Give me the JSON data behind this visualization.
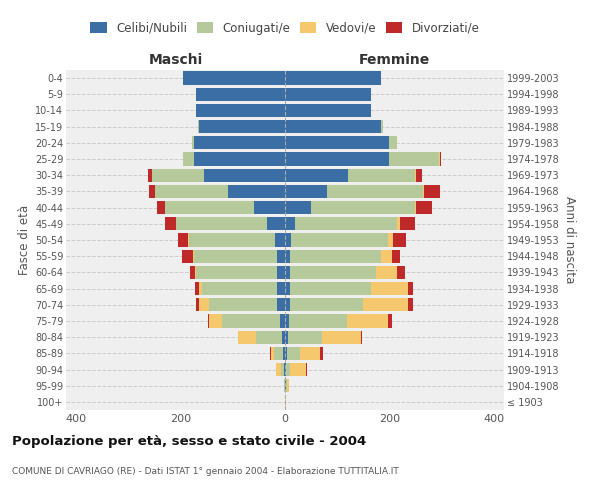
{
  "age_groups": [
    "100+",
    "95-99",
    "90-94",
    "85-89",
    "80-84",
    "75-79",
    "70-74",
    "65-69",
    "60-64",
    "55-59",
    "50-54",
    "45-49",
    "40-44",
    "35-39",
    "30-34",
    "25-29",
    "20-24",
    "15-19",
    "10-14",
    "5-9",
    "0-4"
  ],
  "birth_years": [
    "≤ 1903",
    "1904-1908",
    "1909-1913",
    "1914-1918",
    "1919-1923",
    "1924-1928",
    "1929-1933",
    "1934-1938",
    "1939-1943",
    "1944-1948",
    "1949-1953",
    "1954-1958",
    "1959-1963",
    "1964-1968",
    "1969-1973",
    "1974-1978",
    "1979-1983",
    "1984-1988",
    "1989-1993",
    "1994-1998",
    "1999-2003"
  ],
  "colors": {
    "celibi": "#3A6EA5",
    "coniugati": "#B5C99A",
    "vedovi": "#F5C86E",
    "divorziati": "#C0292A"
  },
  "maschi": {
    "celibi": [
      0,
      0,
      2,
      3,
      5,
      10,
      15,
      15,
      15,
      15,
      20,
      35,
      60,
      110,
      155,
      175,
      175,
      165,
      170,
      170,
      195
    ],
    "coniugati": [
      0,
      1,
      5,
      18,
      50,
      110,
      130,
      145,
      155,
      160,
      165,
      175,
      170,
      140,
      100,
      20,
      3,
      2,
      0,
      0,
      0
    ],
    "vedovi": [
      0,
      1,
      10,
      5,
      35,
      25,
      20,
      5,
      3,
      2,
      1,
      0,
      0,
      0,
      0,
      0,
      0,
      0,
      0,
      0,
      0
    ],
    "divorziati": [
      0,
      0,
      0,
      2,
      0,
      3,
      5,
      8,
      10,
      20,
      20,
      20,
      15,
      10,
      8,
      0,
      0,
      0,
      0,
      0,
      0
    ]
  },
  "femmine": {
    "celibi": [
      0,
      1,
      2,
      3,
      5,
      8,
      10,
      10,
      10,
      10,
      12,
      20,
      50,
      80,
      120,
      200,
      200,
      185,
      165,
      165,
      185
    ],
    "coniugati": [
      0,
      2,
      8,
      25,
      65,
      110,
      140,
      155,
      165,
      175,
      185,
      195,
      200,
      185,
      130,
      95,
      15,
      2,
      0,
      0,
      0
    ],
    "vedovi": [
      1,
      5,
      30,
      40,
      75,
      80,
      85,
      70,
      40,
      20,
      10,
      5,
      2,
      2,
      2,
      2,
      0,
      0,
      0,
      0,
      0
    ],
    "divorziati": [
      0,
      0,
      2,
      5,
      2,
      8,
      10,
      10,
      15,
      15,
      25,
      30,
      30,
      30,
      10,
      2,
      0,
      0,
      0,
      0,
      0
    ]
  },
  "title": "Popolazione per età, sesso e stato civile - 2004",
  "subtitle": "COMUNE DI CAVRIAGO (RE) - Dati ISTAT 1° gennaio 2004 - Elaborazione TUTTITALIA.IT",
  "header_left": "Maschi",
  "header_right": "Femmine",
  "ylabel_left": "Fasce di età",
  "ylabel_right": "Anni di nascita",
  "xlim": 420,
  "bg_color": "#FFFFFF",
  "plot_bg": "#EFEFEF",
  "grid_color": "#CCCCCC",
  "legend_labels": [
    "Celibi/Nubili",
    "Coniugati/e",
    "Vedovi/e",
    "Divorziati/e"
  ]
}
